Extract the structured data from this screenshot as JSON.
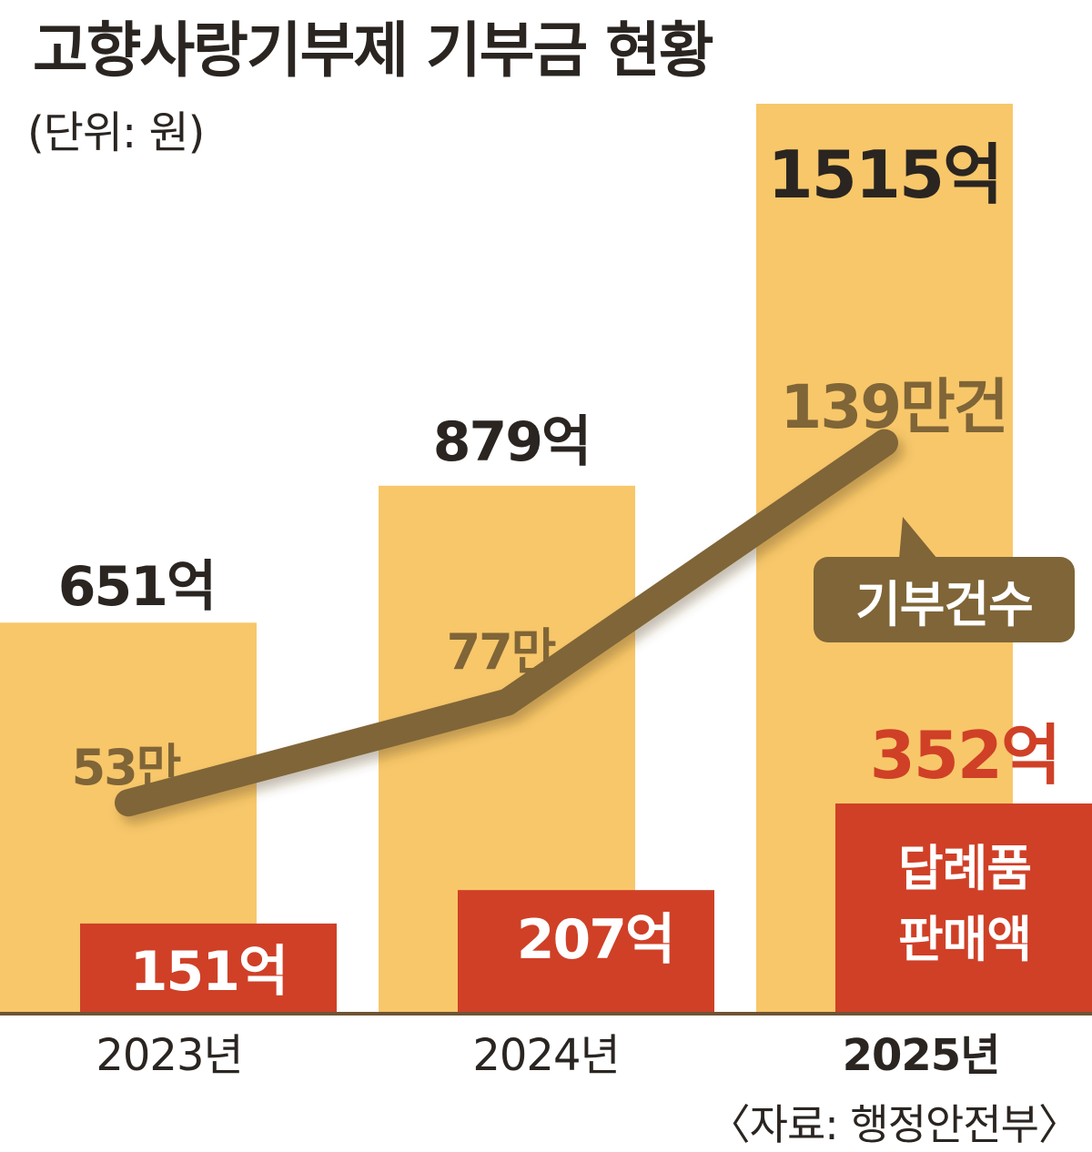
{
  "title": "고향사랑기부제 기부금 현황",
  "unit": "(단위: 원)",
  "source": "〈자료: 행정안전부〉",
  "colors": {
    "donation_bar": "#f8c76a",
    "gift_bar": "#cf4027",
    "count_line": "#7f6537",
    "baseline": "#6e5434",
    "highlight_text": "#cf4027"
  },
  "chart_data": {
    "type": "bar",
    "categories": [
      "2023년",
      "2024년",
      "2025년"
    ],
    "series": [
      {
        "values": [
          651,
          879,
          1515
        ],
        "labels": [
          "651억",
          "879억",
          "1515억"
        ]
      },
      {
        "values": [
          151,
          207,
          352
        ],
        "labels": [
          "151억",
          "207억",
          "352억"
        ]
      },
      {
        "values": [
          53,
          77,
          139
        ],
        "labels": [
          "53만",
          "77만",
          "139만건"
        ]
      }
    ],
    "callouts": {
      "count": "기부건수",
      "gift_line1": "답례품",
      "gift_line2": "판매액"
    }
  }
}
